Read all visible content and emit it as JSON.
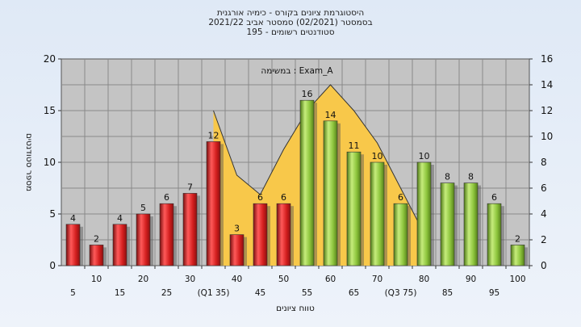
{
  "header": {
    "line1": "היסטוגרמת ציונים בקורס - כימיה אורגנית",
    "line2": "בסמסטר  (02/2021)  סמסטר אביב 2021/22",
    "line3": "סטודנטים רשומים - 195"
  },
  "chart_data": {
    "type": "bar",
    "title": "היסטוגרמת ציונים בקורס - כימיה אורגנית",
    "annotation": "במשימה : Exam_A",
    "xlabel": "טווח ציונים",
    "ylabel": "מספר סטודנטים",
    "ylim": [
      0,
      20
    ],
    "y_ticks": [
      0,
      5,
      10,
      15,
      20
    ],
    "y2lim": [
      0,
      16
    ],
    "y2_ticks": [
      0,
      2,
      4,
      6,
      8,
      10,
      12,
      14,
      16
    ],
    "grid": true,
    "categories": [
      "5",
      "10",
      "15",
      "20",
      "25",
      "30",
      "(Q1 35)",
      "40",
      "45",
      "50",
      "55",
      "60",
      "65",
      "70",
      "(Q3 75)",
      "80",
      "85",
      "90",
      "95",
      "100"
    ],
    "values": [
      4,
      2,
      4,
      5,
      6,
      7,
      12,
      3,
      6,
      6,
      16,
      14,
      11,
      10,
      6,
      10,
      8,
      8,
      6,
      2
    ],
    "bar_colors": [
      "red",
      "red",
      "red",
      "red",
      "red",
      "red",
      "red",
      "red",
      "red",
      "red",
      "green",
      "green",
      "green",
      "green",
      "green",
      "green",
      "green",
      "green",
      "green",
      "green"
    ],
    "area_curve": {
      "categories": [
        "(Q1 35)",
        "40",
        "45",
        "50",
        "55",
        "60",
        "65",
        "70",
        "(Q3 75)",
        "80"
      ],
      "values": [
        12,
        7,
        5.5,
        9,
        12,
        14,
        12,
        9.5,
        6,
        2.5
      ]
    },
    "colors": {
      "red_bar": "#d92a2a",
      "green_bar": "#8cc43c",
      "area_fill": "#f8c84a",
      "plot_bg": "#c4c4c4"
    }
  }
}
